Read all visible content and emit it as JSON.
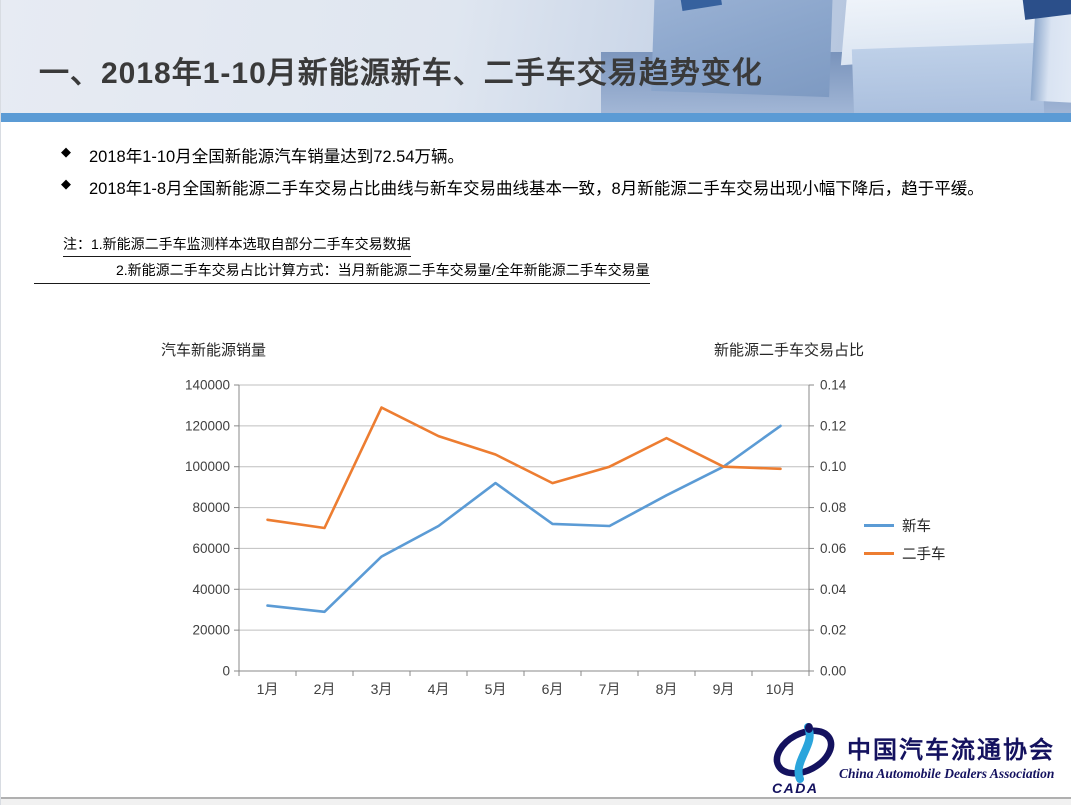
{
  "slide": {
    "title": "一、2018年1-10月新能源新车、二手车交易趋势变化",
    "bullet_icon": "◆",
    "bullets": [
      "2018年1-10月全国新能源汽车销量达到72.54万辆。",
      "2018年1-8月全国新能源二手车交易占比曲线与新车交易曲线基本一致，8月新能源二手车交易出现小幅下降后，趋于平缓。"
    ],
    "notes": [
      "注：1.新能源二手车监测样本选取自部分二手车交易数据",
      "2.新能源二手车交易占比计算方式：当月新能源二手车交易量/全年新能源二手车交易量"
    ]
  },
  "chart_data": {
    "type": "line",
    "categories": [
      "1月",
      "2月",
      "3月",
      "4月",
      "5月",
      "6月",
      "7月",
      "8月",
      "9月",
      "10月"
    ],
    "series": [
      {
        "name": "新车",
        "axis": "left",
        "color": "#5B9BD5",
        "values": [
          32000,
          29000,
          56000,
          71000,
          92000,
          72000,
          71000,
          86000,
          100000,
          120000
        ]
      },
      {
        "name": "二手车",
        "axis": "right",
        "color": "#ED7D31",
        "values": [
          0.074,
          0.07,
          0.129,
          0.115,
          0.106,
          0.092,
          0.1,
          0.114,
          0.1,
          0.099
        ]
      }
    ],
    "left_axis": {
      "title": "汽车新能源销量",
      "min": 0,
      "max": 140000,
      "step": 20000,
      "format": "int"
    },
    "right_axis": {
      "title": "新能源二手车交易占比",
      "min": 0,
      "max": 0.14,
      "step": 0.02,
      "format": "2dp"
    },
    "grid": true,
    "legend_position": "right"
  },
  "logo": {
    "cada": "CADA",
    "cn": "中国汽车流通协会",
    "en": "China Automobile Dealers  Association"
  },
  "colors": {
    "accent_bar": "#5B9BD5",
    "new_car_line": "#5B9BD5",
    "used_car_line": "#ED7D31",
    "gridline": "#BFBFBF",
    "axis": "#898989",
    "tick_text": "#3f3f3f",
    "navy": "#14125F"
  }
}
